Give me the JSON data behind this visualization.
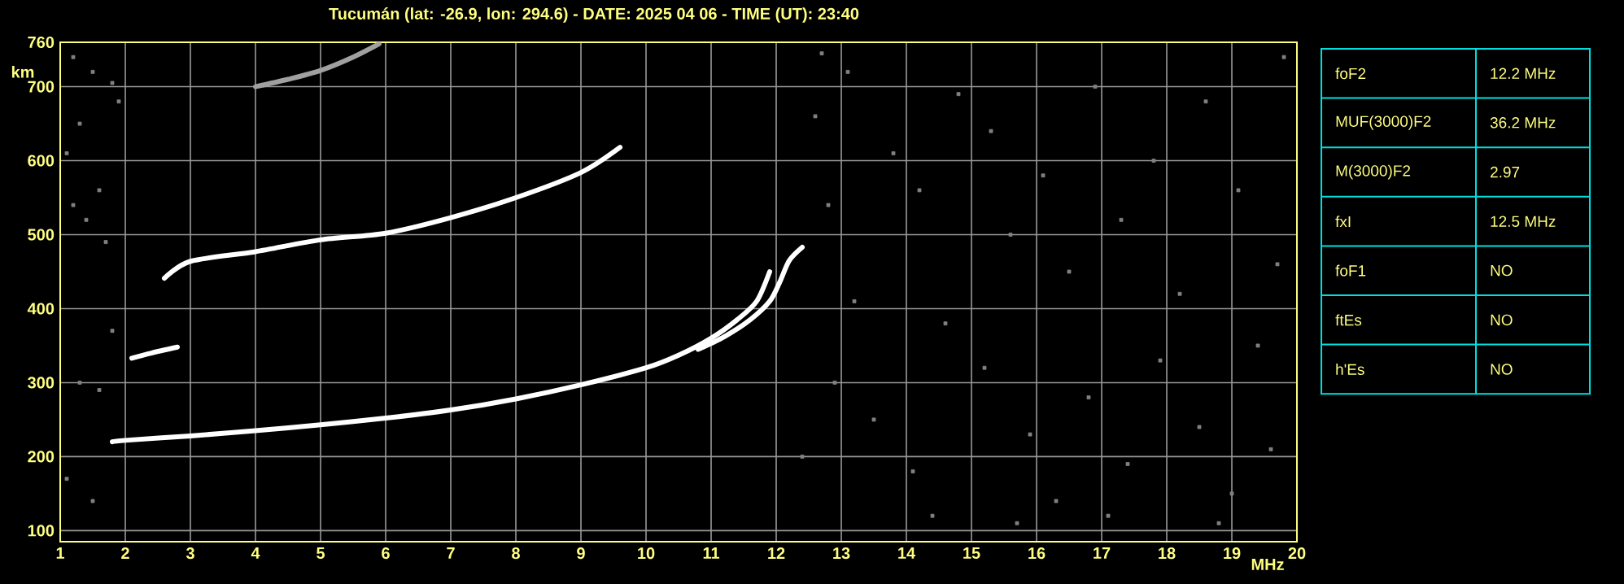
{
  "chart_data": {
    "type": "line",
    "title": "Tucumán (lat: -26.9, lon: 294.6) - DATE: 2025 04 06 - TIME (UT): 23:40",
    "xlabel": "MHz",
    "ylabel": "km",
    "xlim": [
      1,
      20
    ],
    "xticks": [
      1,
      2,
      3,
      4,
      5,
      6,
      7,
      8,
      9,
      10,
      11,
      12,
      13,
      14,
      15,
      16,
      17,
      18,
      19,
      20
    ],
    "ylim": [
      85,
      760
    ],
    "yticks": [
      100,
      200,
      300,
      400,
      500,
      600,
      700,
      760
    ],
    "grid": true,
    "marker": "none",
    "series": [
      {
        "color": "#ffffff",
        "x": [
          1.8,
          2,
          3,
          4,
          5,
          6,
          7,
          8,
          9,
          10,
          10.5,
          11,
          11.4,
          11.7,
          11.9
        ],
        "values": [
          220,
          222,
          228,
          235,
          243,
          252,
          263,
          278,
          297,
          320,
          337,
          360,
          385,
          410,
          450
        ]
      },
      {
        "color": "#ffffff",
        "x": [
          10.8,
          11.2,
          11.6,
          11.9,
          12.05,
          12.2,
          12.4
        ],
        "values": [
          345,
          362,
          385,
          410,
          435,
          465,
          483
        ]
      },
      {
        "color": "#ffffff",
        "x": [
          2.6,
          3,
          4,
          5,
          6,
          7,
          8,
          9,
          9.6
        ],
        "values": [
          441,
          464,
          477,
          493,
          502,
          523,
          550,
          584,
          618
        ]
      },
      {
        "color": "#ffffff",
        "x": [
          2.1,
          2.4,
          2.8
        ],
        "values": [
          333,
          340,
          348
        ]
      },
      {
        "color": "#a0a0a0",
        "x": [
          4,
          4.5,
          5,
          5.5,
          5.9
        ],
        "values": [
          700,
          710,
          722,
          740,
          758
        ]
      },
      {
        "type": "scatter",
        "marker": "square",
        "color": "#808080",
        "x": [
          1.2,
          1.5,
          1.8,
          1.3,
          1.1,
          1.9,
          1.6,
          1.2,
          1.4,
          1.7,
          1.3,
          1.1,
          1.5,
          1.8,
          1.6,
          12.6,
          13.1,
          13.8,
          14.2,
          14.8,
          15.3,
          15.6,
          16.1,
          16.5,
          16.9,
          17.3,
          17.8,
          18.2,
          18.6,
          19.1,
          19.4,
          19.7,
          12.9,
          13.5,
          14.1,
          14.6,
          15.2,
          15.9,
          16.3,
          16.8,
          17.4,
          17.9,
          18.5,
          19.0,
          19.6,
          13.2,
          14.4,
          15.7,
          17.1,
          18.8,
          12.4,
          12.8,
          19.8,
          12.7
        ],
        "values": [
          740,
          720,
          705,
          650,
          610,
          680,
          560,
          540,
          520,
          490,
          300,
          170,
          140,
          370,
          290,
          660,
          720,
          610,
          560,
          690,
          640,
          500,
          580,
          450,
          700,
          520,
          600,
          420,
          680,
          560,
          350,
          460,
          300,
          250,
          180,
          380,
          320,
          230,
          140,
          280,
          190,
          330,
          240,
          150,
          210,
          410,
          120,
          110,
          120,
          110,
          200,
          540,
          740,
          745
        ]
      }
    ],
    "annotations": [
      "foF2",
      "12.2 MHz",
      "MUF(3000)F2",
      "36.2 MHz",
      "M(3000)F2",
      "2.97",
      "fxI",
      "12.5 MHz",
      "foF1",
      "NO",
      "ftEs",
      "NO",
      "h'Es",
      "NO"
    ]
  }
}
